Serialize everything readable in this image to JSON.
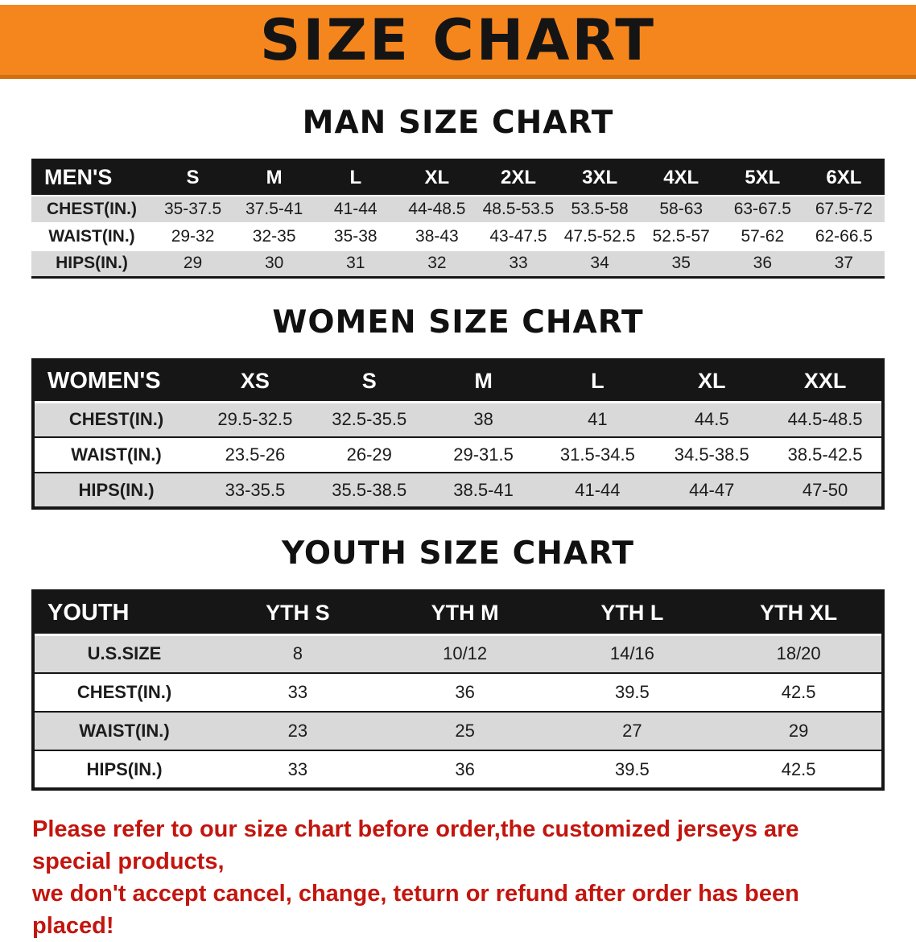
{
  "colors": {
    "banner-bg": "#f5861d",
    "banner-border": "#d2700f",
    "header-bg": "#161616",
    "row-alt-bg": "#d9d9d9",
    "disclaimer-red": "#c3150e"
  },
  "banner": {
    "title": "SIZE CHART"
  },
  "sections": [
    {
      "heading": "MAN SIZE CHART",
      "table": {
        "header": [
          "MEN'S",
          "S",
          "M",
          "L",
          "XL",
          "2XL",
          "3XL",
          "4XL",
          "5XL",
          "6XL"
        ],
        "rows": [
          [
            "CHEST(IN.)",
            "35-37.5",
            "37.5-41",
            "41-44",
            "44-48.5",
            "48.5-53.5",
            "53.5-58",
            "58-63",
            "63-67.5",
            "67.5-72"
          ],
          [
            "WAIST(IN.)",
            "29-32",
            "32-35",
            "35-38",
            "38-43",
            "43-47.5",
            "47.5-52.5",
            "52.5-57",
            "57-62",
            "62-66.5"
          ],
          [
            "HIPS(IN.)",
            "29",
            "30",
            "31",
            "32",
            "33",
            "34",
            "35",
            "36",
            "37"
          ]
        ]
      }
    },
    {
      "heading": "WOMEN SIZE CHART",
      "table": {
        "header": [
          "WOMEN'S",
          "XS",
          "S",
          "M",
          "L",
          "XL",
          "XXL"
        ],
        "rows": [
          [
            "CHEST(IN.)",
            "29.5-32.5",
            "32.5-35.5",
            "38",
            "41",
            "44.5",
            "44.5-48.5"
          ],
          [
            "WAIST(IN.)",
            "23.5-26",
            "26-29",
            "29-31.5",
            "31.5-34.5",
            "34.5-38.5",
            "38.5-42.5"
          ],
          [
            "HIPS(IN.)",
            "33-35.5",
            "35.5-38.5",
            "38.5-41",
            "41-44",
            "44-47",
            "47-50"
          ]
        ]
      }
    },
    {
      "heading": "YOUTH SIZE CHART",
      "table": {
        "header": [
          "YOUTH",
          "YTH S",
          "YTH M",
          "YTH L",
          "YTH XL"
        ],
        "rows": [
          [
            "U.S.SIZE",
            "8",
            "10/12",
            "14/16",
            "18/20"
          ],
          [
            "CHEST(IN.)",
            "33",
            "36",
            "39.5",
            "42.5"
          ],
          [
            "WAIST(IN.)",
            "23",
            "25",
            "27",
            "29"
          ],
          [
            "HIPS(IN.)",
            "33",
            "36",
            "39.5",
            "42.5"
          ]
        ]
      }
    }
  ],
  "disclaimer": {
    "line1": "Please refer to our size chart before order,the customized jerseys are special products,",
    "line2": "we don't accept cancel, change, teturn or refund after order has been placed!"
  }
}
